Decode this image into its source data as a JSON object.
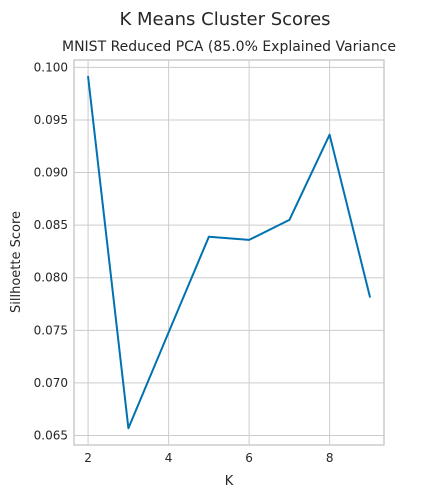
{
  "chart_data": {
    "type": "line",
    "suptitle": "K Means Cluster Scores",
    "title": "MNIST Reduced PCA (85.0% Explained Variance",
    "xlabel": "K",
    "ylabel": "Sillhoette Score",
    "x": [
      2,
      3,
      4,
      5,
      6,
      7,
      8,
      9
    ],
    "series": [
      {
        "values": [
          0.0991,
          0.0657,
          0.0748,
          0.0839,
          0.0836,
          0.0855,
          0.0936,
          0.0782
        ],
        "color": "#0072b2"
      }
    ],
    "xlim": [
      1.65,
      9.35
    ],
    "ylim": [
      0.0641,
      0.1007
    ],
    "xticks": [
      2,
      4,
      6,
      8
    ],
    "yticks": [
      0.065,
      0.07,
      0.075,
      0.08,
      0.085,
      0.09,
      0.095,
      0.1
    ],
    "ytick_labels": [
      "0.065",
      "0.070",
      "0.075",
      "0.080",
      "0.085",
      "0.090",
      "0.095",
      "0.100"
    ],
    "grid": true,
    "legend": "none"
  }
}
